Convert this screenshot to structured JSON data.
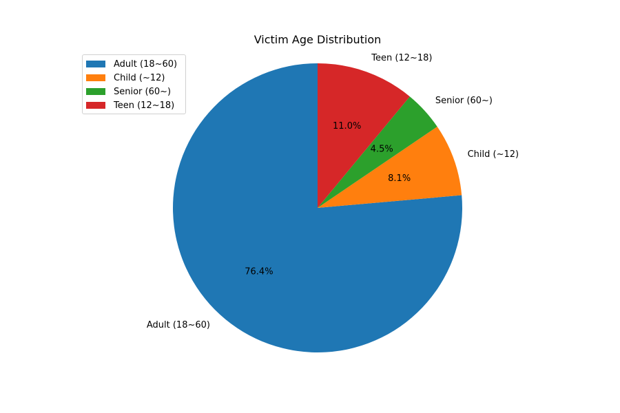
{
  "chart_data": {
    "type": "pie",
    "title": "Victim Age Distribution",
    "start_angle_deg": 90,
    "direction": "counterclockwise",
    "legend_position": "top-left",
    "slices": [
      {
        "label": "Adult (18~60)",
        "value": 76.4,
        "pct_label": "76.4%",
        "color": "#1f77b4"
      },
      {
        "label": "Child (~12)",
        "value": 8.1,
        "pct_label": "8.1%",
        "color": "#ff7f0e"
      },
      {
        "label": "Senior (60~)",
        "value": 4.5,
        "pct_label": "4.5%",
        "color": "#2ca02c"
      },
      {
        "label": "Teen (12~18)",
        "value": 11.0,
        "pct_label": "11.0%",
        "color": "#d62728"
      }
    ]
  },
  "legend": {
    "items": [
      {
        "label": "Adult (18~60)",
        "color": "#1f77b4"
      },
      {
        "label": "Child (~12)",
        "color": "#ff7f0e"
      },
      {
        "label": "Senior (60~)",
        "color": "#2ca02c"
      },
      {
        "label": "Teen (12~18)",
        "color": "#d62728"
      }
    ]
  }
}
